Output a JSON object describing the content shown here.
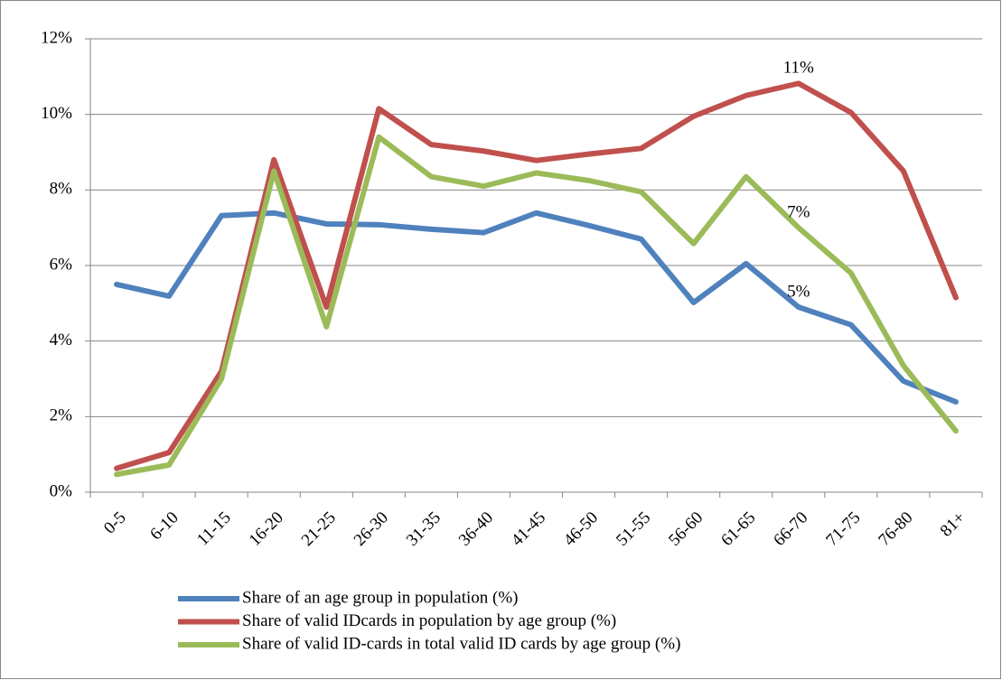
{
  "chart_data": {
    "type": "line",
    "categories": [
      "0-5",
      "6-10",
      "11-15",
      "16-20",
      "21-25",
      "26-30",
      "31-35",
      "36-40",
      "41-45",
      "46-50",
      "51-55",
      "56-60",
      "61-65",
      "66-70",
      "71-75",
      "76-80",
      "81+"
    ],
    "series": [
      {
        "name": "Share of an age group in population (%)",
        "color": "#4f81bd",
        "values": [
          5.5,
          5.19,
          7.32,
          7.39,
          7.1,
          7.08,
          6.96,
          6.87,
          7.39,
          7.06,
          6.7,
          5.02,
          6.05,
          4.9,
          4.43,
          2.94,
          2.39
        ],
        "value_labels": [
          null,
          null,
          null,
          null,
          null,
          null,
          null,
          null,
          null,
          null,
          null,
          null,
          null,
          "5%",
          null,
          null,
          null
        ]
      },
      {
        "name": "Share of valid IDcards in population by age group (%)",
        "color": "#c0504d",
        "values": [
          0.63,
          1.05,
          3.2,
          8.8,
          4.9,
          10.15,
          9.2,
          9.03,
          8.78,
          8.95,
          9.1,
          9.95,
          10.5,
          10.82,
          10.05,
          8.5,
          5.15
        ],
        "value_labels": [
          null,
          null,
          null,
          null,
          null,
          null,
          null,
          null,
          null,
          null,
          null,
          null,
          null,
          "11%",
          null,
          null,
          null
        ]
      },
      {
        "name": "Share of valid ID-cards in total valid ID cards by age group (%)",
        "color": "#9bbb59",
        "values": [
          0.47,
          0.72,
          3.0,
          8.5,
          4.38,
          9.4,
          8.35,
          8.1,
          8.45,
          8.25,
          7.95,
          6.58,
          8.35,
          7.0,
          5.8,
          3.35,
          1.62
        ],
        "value_labels": [
          null,
          null,
          null,
          null,
          null,
          null,
          null,
          null,
          null,
          null,
          null,
          null,
          null,
          "7%",
          null,
          null,
          null
        ]
      }
    ],
    "ylim": [
      0,
      12
    ],
    "yticks": [
      {
        "value": 0,
        "label": "0%"
      },
      {
        "value": 2,
        "label": "2%"
      },
      {
        "value": 4,
        "label": "4%"
      },
      {
        "value": 6,
        "label": "6%"
      },
      {
        "value": 8,
        "label": "8%"
      },
      {
        "value": 10,
        "label": "10%"
      },
      {
        "value": 12,
        "label": "12%"
      }
    ],
    "grid": true,
    "legend": "bottom"
  }
}
